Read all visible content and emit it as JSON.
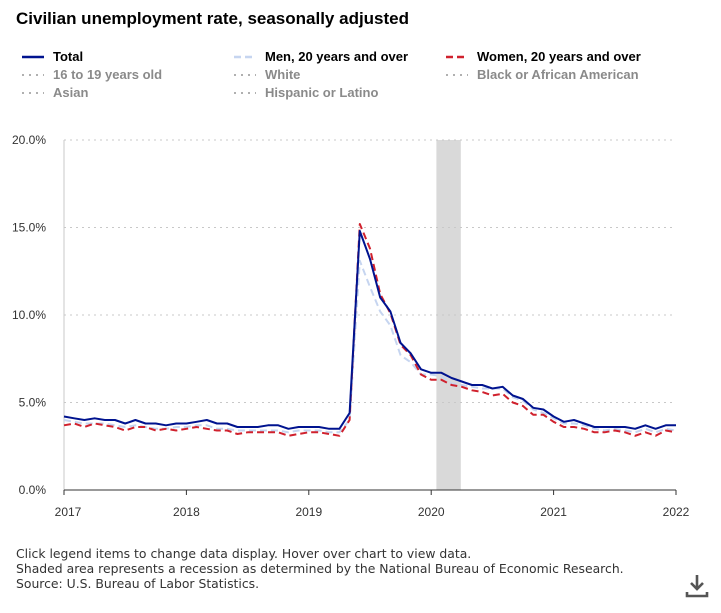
{
  "page": {
    "title": "Civilian unemployment rate, seasonally adjusted",
    "footer": [
      "Click legend items to change data display. Hover over chart to view data.",
      "Shaded area represents a recession as determined by the National Bureau of Economic Research.",
      "Source: U.S. Bureau of Labor Statistics."
    ],
    "download_icon": "download-icon"
  },
  "legend": [
    {
      "label": "Total",
      "color": "#00138f",
      "style": "solid",
      "active": true
    },
    {
      "label": "Men, 20 years and over",
      "color": "#c6d5f0",
      "style": "dashed",
      "active": true
    },
    {
      "label": "Women, 20 years and over",
      "color": "#d0212d",
      "style": "dashed",
      "active": true
    },
    {
      "label": "16 to 19 years old",
      "color": "#b0b0b0",
      "style": "dotted",
      "active": false
    },
    {
      "label": "White",
      "color": "#b0b0b0",
      "style": "dotted",
      "active": false
    },
    {
      "label": "Black or African American",
      "color": "#b0b0b0",
      "style": "dotted",
      "active": false
    },
    {
      "label": "Asian",
      "color": "#b0b0b0",
      "style": "dotted",
      "active": false
    },
    {
      "label": "Hispanic or Latino",
      "color": "#b0b0b0",
      "style": "dotted",
      "active": false
    }
  ],
  "chart_data": {
    "type": "line",
    "title": "Civilian unemployment rate, seasonally adjusted",
    "xlabel": "",
    "ylabel": "",
    "x_start": "2017-01",
    "x_end": "2022-01",
    "xticks": [
      "2017",
      "2018",
      "2019",
      "2020",
      "2021",
      "2022"
    ],
    "yticks": [
      "0.0%",
      "5.0%",
      "10.0%",
      "15.0%",
      "20.0%"
    ],
    "ylim": [
      0,
      20
    ],
    "grid": "horizontal dotted",
    "recession": {
      "start": "2020-02",
      "end": "2020-04"
    },
    "series": [
      {
        "name": "Total",
        "color": "#00138f",
        "style": "solid",
        "values": [
          4.2,
          4.1,
          4.0,
          4.1,
          4.0,
          4.0,
          3.8,
          4.0,
          3.8,
          3.8,
          3.7,
          3.8,
          3.8,
          3.9,
          4.0,
          3.8,
          3.8,
          3.6,
          3.6,
          3.6,
          3.7,
          3.7,
          3.5,
          3.6,
          3.6,
          3.6,
          3.5,
          3.5,
          4.4,
          14.8,
          13.2,
          11.0,
          10.2,
          8.4,
          7.8,
          6.9,
          6.7,
          6.7,
          6.4,
          6.2,
          6.0,
          6.0,
          5.8,
          5.9,
          5.4,
          5.2,
          4.7,
          4.6,
          4.2,
          3.9,
          4.0,
          3.8,
          3.6,
          3.6,
          3.6,
          3.6,
          3.5,
          3.7,
          3.5,
          3.7,
          3.7
        ]
      },
      {
        "name": "Men, 20 years and over",
        "color": "#c6d5f0",
        "style": "dashed",
        "values": [
          4.0,
          3.9,
          3.8,
          3.8,
          3.8,
          3.7,
          3.6,
          3.7,
          3.6,
          3.5,
          3.5,
          3.6,
          3.6,
          3.7,
          3.7,
          3.5,
          3.5,
          3.4,
          3.4,
          3.4,
          3.4,
          3.4,
          3.3,
          3.4,
          3.4,
          3.4,
          3.3,
          3.3,
          4.0,
          13.1,
          11.6,
          10.2,
          9.4,
          7.7,
          7.3,
          6.6,
          6.6,
          6.5,
          6.1,
          6.0,
          5.9,
          5.8,
          5.8,
          5.8,
          5.3,
          5.1,
          4.6,
          4.4,
          4.1,
          3.8,
          3.8,
          3.7,
          3.5,
          3.4,
          3.5,
          3.4,
          3.3,
          3.5,
          3.3,
          3.5,
          3.4
        ]
      },
      {
        "name": "Women, 20 years and over",
        "color": "#d0212d",
        "style": "dashed",
        "values": [
          3.7,
          3.8,
          3.6,
          3.8,
          3.7,
          3.6,
          3.4,
          3.6,
          3.6,
          3.4,
          3.5,
          3.4,
          3.5,
          3.6,
          3.5,
          3.4,
          3.4,
          3.2,
          3.3,
          3.3,
          3.3,
          3.3,
          3.1,
          3.2,
          3.3,
          3.3,
          3.2,
          3.1,
          4.0,
          15.2,
          13.8,
          11.2,
          10.1,
          8.3,
          7.7,
          6.6,
          6.3,
          6.3,
          6.0,
          5.9,
          5.7,
          5.6,
          5.4,
          5.5,
          5.0,
          4.8,
          4.3,
          4.3,
          3.9,
          3.6,
          3.6,
          3.5,
          3.3,
          3.3,
          3.4,
          3.3,
          3.1,
          3.3,
          3.1,
          3.4,
          3.3
        ]
      }
    ]
  }
}
